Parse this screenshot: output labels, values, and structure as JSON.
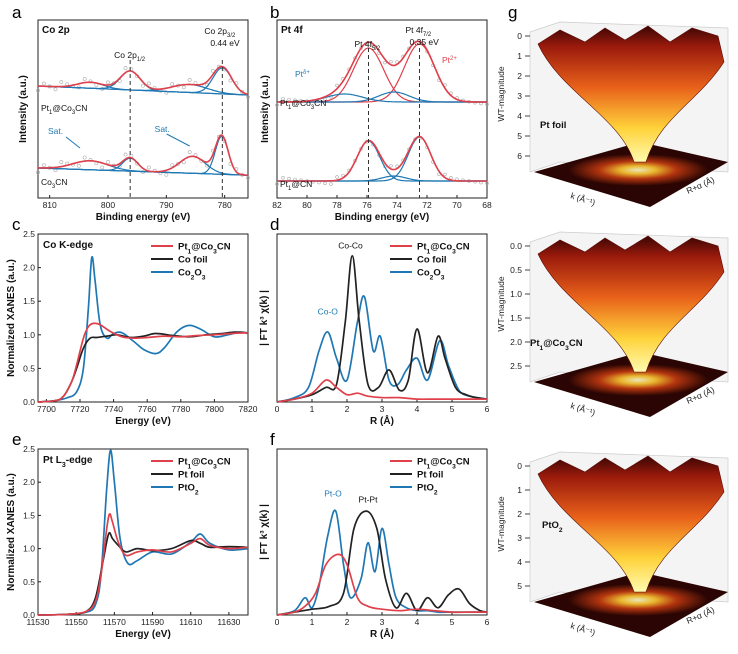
{
  "colors": {
    "red": "#e0404a",
    "black": "#222222",
    "blue": "#1f78b4",
    "gray": "#aaaaaa"
  },
  "panel_letters": [
    "a",
    "b",
    "c",
    "d",
    "e",
    "f",
    "g"
  ],
  "chart_data": [
    {
      "panel": "a",
      "type": "line",
      "title": "Co 2p",
      "xlabel": "Binding energy (eV)",
      "ylabel": "Intensity (a.u.)",
      "xlim": [
        812,
        776
      ],
      "xticks": [
        810,
        800,
        790,
        780
      ],
      "annotations": [
        "Co 2p1/2",
        "Co 2p3/2",
        "0.44 eV",
        "Sat.",
        "Sat."
      ],
      "samples": [
        "Pt1@Co3CN",
        "Co3CN"
      ],
      "peaks": {
        "Co2p1/2": 796,
        "Co2p3/2": 780.5
      }
    },
    {
      "panel": "b",
      "type": "line",
      "title": "Pt 4f",
      "xlabel": "Binding energy (eV)",
      "ylabel": "Intensity (a.u.)",
      "xlim": [
        82,
        68
      ],
      "xticks": [
        82,
        80,
        78,
        76,
        74,
        72,
        70,
        68
      ],
      "annotations": [
        "Pt 4f5/2",
        "Pt 4f7/2",
        "0.35 eV",
        "Pt δ+",
        "Pt 2+"
      ],
      "samples": [
        "Pt1@Co3CN",
        "Pt1@CN"
      ],
      "peaks": {
        "Pt4f5/2": 75.8,
        "Pt4f7/2": 72.5
      }
    },
    {
      "panel": "c",
      "type": "line",
      "title": "Co K-edge",
      "xlabel": "Energy (eV)",
      "ylabel": "Normalized XANES (a.u.)",
      "xlim": [
        7695,
        7820
      ],
      "ylim": [
        0,
        2.5
      ],
      "xticks": [
        7700,
        7720,
        7740,
        7760,
        7780,
        7800,
        7820
      ],
      "yticks": [
        0,
        0.5,
        1.0,
        1.5,
        2.0,
        2.5
      ],
      "series": [
        {
          "name": "Pt1@Co3CN",
          "x": [
            7695,
            7705,
            7710,
            7715,
            7718,
            7722,
            7725,
            7728,
            7732,
            7738,
            7745,
            7752,
            7760,
            7770,
            7780,
            7790,
            7800,
            7810,
            7820
          ],
          "values": [
            0,
            0.02,
            0.08,
            0.3,
            0.55,
            0.95,
            1.12,
            1.17,
            1.15,
            1.05,
            0.97,
            0.95,
            0.96,
            0.98,
            0.97,
            0.99,
            1.0,
            1.02,
            1.03
          ]
        },
        {
          "name": "Co foil",
          "x": [
            7695,
            7705,
            7710,
            7715,
            7718,
            7722,
            7726,
            7730,
            7736,
            7742,
            7750,
            7758,
            7765,
            7775,
            7785,
            7795,
            7805,
            7812,
            7820
          ],
          "values": [
            0,
            0.02,
            0.08,
            0.3,
            0.5,
            0.8,
            0.95,
            0.96,
            0.98,
            1.0,
            0.96,
            0.98,
            1.02,
            0.99,
            0.97,
            1.0,
            1.02,
            1.04,
            1.03
          ]
        },
        {
          "name": "Co2O3",
          "x": [
            7695,
            7705,
            7712,
            7718,
            7722,
            7725,
            7727,
            7729,
            7732,
            7736,
            7740,
            7745,
            7752,
            7758,
            7765,
            7770,
            7778,
            7785,
            7792,
            7800,
            7808,
            7815,
            7820
          ],
          "values": [
            0,
            0.02,
            0.06,
            0.15,
            0.5,
            1.4,
            2.15,
            1.8,
            1.15,
            0.95,
            1.02,
            1.03,
            0.9,
            0.78,
            0.72,
            0.8,
            1.05,
            1.14,
            1.08,
            0.97,
            1.0,
            1.04,
            1.02
          ]
        }
      ]
    },
    {
      "panel": "d",
      "type": "line",
      "title": "",
      "xlabel": "R (Å)",
      "ylabel": "| FT k³ χ(k) |",
      "xlim": [
        0,
        6
      ],
      "xticks": [
        0,
        1,
        2,
        3,
        4,
        5,
        6
      ],
      "annotations": [
        "Co-Co",
        "Co-O"
      ],
      "series": [
        {
          "name": "Pt1@Co3CN",
          "x": [
            0,
            0.5,
            1.0,
            1.4,
            1.7,
            2.0,
            2.3,
            2.6,
            3.0,
            3.5,
            4.0,
            4.5,
            5.0,
            5.5,
            6
          ],
          "values": [
            0,
            0.02,
            0.06,
            0.15,
            0.1,
            0.05,
            0.06,
            0.04,
            0.03,
            0.03,
            0.02,
            0.02,
            0.02,
            0.02,
            0.02
          ]
        },
        {
          "name": "Co foil",
          "x": [
            0,
            0.5,
            1.0,
            1.4,
            1.7,
            1.95,
            2.15,
            2.35,
            2.6,
            2.9,
            3.2,
            3.5,
            3.75,
            4.0,
            4.3,
            4.6,
            4.8,
            5.1,
            5.4,
            5.7,
            6
          ],
          "values": [
            0,
            0.02,
            0.05,
            0.1,
            0.12,
            0.55,
            1.0,
            0.55,
            0.12,
            0.1,
            0.22,
            0.08,
            0.15,
            0.5,
            0.2,
            0.45,
            0.3,
            0.1,
            0.05,
            0.03,
            0.02
          ]
        },
        {
          "name": "Co2O3",
          "x": [
            0,
            0.5,
            0.9,
            1.2,
            1.45,
            1.7,
            2.0,
            2.3,
            2.5,
            2.75,
            2.95,
            3.2,
            3.45,
            3.7,
            4.0,
            4.3,
            4.65,
            4.9,
            5.2,
            5.5,
            6
          ],
          "values": [
            0,
            0.03,
            0.1,
            0.35,
            0.48,
            0.3,
            0.15,
            0.55,
            0.72,
            0.35,
            0.45,
            0.15,
            0.12,
            0.22,
            0.3,
            0.15,
            0.42,
            0.25,
            0.08,
            0.04,
            0.02
          ]
        }
      ]
    },
    {
      "panel": "e",
      "type": "line",
      "title": "Pt L3-edge",
      "xlabel": "Energy (eV)",
      "ylabel": "Normalized XANES (a.u.)",
      "xlim": [
        11530,
        11640
      ],
      "ylim": [
        0,
        2.5
      ],
      "xticks": [
        11530,
        11550,
        11570,
        11590,
        11610,
        11630
      ],
      "yticks": [
        0,
        0.5,
        1.0,
        1.5,
        2.0,
        2.5
      ],
      "series": [
        {
          "name": "Pt1@Co3CN",
          "x": [
            11530,
            11545,
            11555,
            11560,
            11563,
            11566,
            11567.5,
            11569,
            11572,
            11576,
            11582,
            11590,
            11600,
            11610,
            11615,
            11620,
            11630,
            11640
          ],
          "values": [
            0,
            0.01,
            0.05,
            0.2,
            0.6,
            1.3,
            1.52,
            1.4,
            1.1,
            0.9,
            0.95,
            0.98,
            0.95,
            1.08,
            1.15,
            1.05,
            1.0,
            1.02
          ]
        },
        {
          "name": "Pt foil",
          "x": [
            11530,
            11545,
            11555,
            11560,
            11564,
            11567,
            11569,
            11572,
            11576,
            11582,
            11590,
            11600,
            11610,
            11615,
            11620,
            11630,
            11640
          ],
          "values": [
            0,
            0.01,
            0.05,
            0.25,
            0.8,
            1.22,
            1.15,
            1.05,
            0.95,
            1.0,
            0.97,
            1.0,
            1.12,
            1.08,
            1.02,
            1.03,
            1.02
          ]
        },
        {
          "name": "PtO2",
          "x": [
            11530,
            11545,
            11555,
            11560,
            11563,
            11566,
            11568,
            11570,
            11573,
            11577,
            11582,
            11590,
            11600,
            11610,
            11615,
            11620,
            11630,
            11640
          ],
          "values": [
            0,
            0.01,
            0.04,
            0.15,
            0.6,
            1.9,
            2.48,
            2.0,
            1.15,
            0.78,
            0.82,
            0.95,
            0.92,
            1.1,
            1.22,
            1.08,
            0.98,
            1.0
          ]
        }
      ]
    },
    {
      "panel": "f",
      "type": "line",
      "title": "",
      "xlabel": "R (Å)",
      "ylabel": "| FT k³ χ(k) |",
      "xlim": [
        0,
        6
      ],
      "xticks": [
        0,
        1,
        2,
        3,
        4,
        5,
        6
      ],
      "annotations": [
        "Pt-O",
        "Pt-Pt"
      ],
      "series": [
        {
          "name": "Pt1@Co3CN",
          "x": [
            0,
            0.5,
            0.8,
            1.1,
            1.4,
            1.75,
            2.0,
            2.3,
            2.6,
            3.0,
            3.5,
            4.0,
            4.5,
            5.0,
            5.5,
            6
          ],
          "values": [
            0,
            0.02,
            0.06,
            0.15,
            0.35,
            0.42,
            0.35,
            0.12,
            0.06,
            0.04,
            0.03,
            0.04,
            0.03,
            0.02,
            0.02,
            0.02
          ]
        },
        {
          "name": "Pt foil",
          "x": [
            0,
            0.5,
            1.0,
            1.5,
            1.9,
            2.2,
            2.55,
            2.85,
            3.1,
            3.4,
            3.7,
            4.0,
            4.3,
            4.6,
            4.9,
            5.2,
            5.5,
            5.8,
            6
          ],
          "values": [
            0,
            0.02,
            0.04,
            0.06,
            0.15,
            0.6,
            0.72,
            0.6,
            0.25,
            0.05,
            0.15,
            0.03,
            0.12,
            0.05,
            0.14,
            0.18,
            0.08,
            0.03,
            0.02
          ]
        },
        {
          "name": "PtO2",
          "x": [
            0,
            0.5,
            0.8,
            1.0,
            1.2,
            1.45,
            1.68,
            1.9,
            2.1,
            2.4,
            2.6,
            2.8,
            3.0,
            3.2,
            3.4,
            3.7,
            4.0,
            4.3,
            4.6,
            5.0,
            5.4,
            6
          ],
          "values": [
            0,
            0.03,
            0.12,
            0.05,
            0.2,
            0.55,
            0.72,
            0.35,
            0.12,
            0.25,
            0.5,
            0.3,
            0.6,
            0.35,
            0.12,
            0.05,
            0.03,
            0.03,
            0.02,
            0.02,
            0.02,
            0.02
          ]
        }
      ]
    },
    {
      "panel": "g",
      "type": "heatmap",
      "title": "WT-magnitude",
      "zlabel": "WT-magnitude",
      "xlabel": "k (Å⁻¹)",
      "ylabel": "R+α (Å)",
      "plots": [
        {
          "name": "Pt foil",
          "zticks": [
            "0",
            "1",
            "2",
            "3",
            "4",
            "5",
            "6"
          ]
        },
        {
          "name": "Pt1@Co3CN",
          "zticks": [
            "0.0",
            "0.5",
            "1.0",
            "1.5",
            "2.0",
            "2.5"
          ]
        },
        {
          "name": "PtO2",
          "zticks": [
            "0",
            "1",
            "2",
            "3",
            "4",
            "5"
          ]
        }
      ]
    }
  ]
}
